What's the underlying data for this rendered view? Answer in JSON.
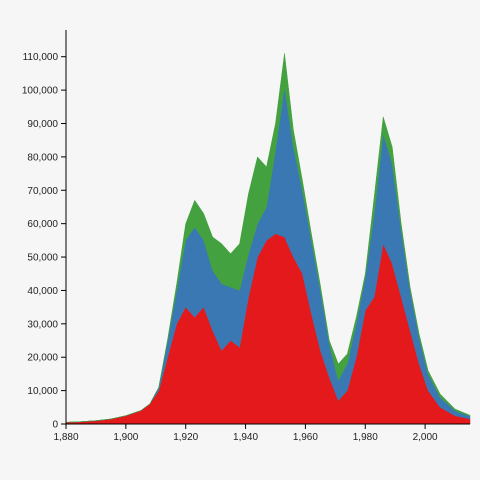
{
  "chart_data": {
    "type": "area",
    "stacked": true,
    "xlim": [
      1880,
      2015
    ],
    "ylim": [
      0,
      118000
    ],
    "x_ticks": [
      1880,
      1900,
      1920,
      1940,
      1960,
      1980,
      2000
    ],
    "x_tick_labels": [
      "1,880",
      "1,900",
      "1,920",
      "1,940",
      "1,960",
      "1,980",
      "2,000"
    ],
    "y_ticks": [
      0,
      10000,
      20000,
      30000,
      40000,
      50000,
      60000,
      70000,
      80000,
      90000,
      100000,
      110000
    ],
    "y_tick_labels": [
      "0",
      "10,000",
      "20,000",
      "30,000",
      "40,000",
      "50,000",
      "60,000",
      "70,000",
      "80,000",
      "90,000",
      "100,000",
      "110,000"
    ],
    "grid": false,
    "legend": "none",
    "x": [
      1880,
      1885,
      1890,
      1895,
      1900,
      1905,
      1908,
      1911,
      1914,
      1917,
      1920,
      1923,
      1926,
      1929,
      1932,
      1935,
      1938,
      1941,
      1944,
      1947,
      1950,
      1953,
      1956,
      1959,
      1962,
      1965,
      1968,
      1971,
      1974,
      1977,
      1980,
      1983,
      1986,
      1989,
      1992,
      1995,
      1998,
      2001,
      2005,
      2010,
      2015
    ],
    "series": [
      {
        "color": "#e3191c",
        "values": [
          500,
          700,
          1000,
          1500,
          2500,
          4000,
          6000,
          10000,
          20000,
          30000,
          35000,
          32000,
          35000,
          28000,
          22000,
          25000,
          23000,
          38000,
          50000,
          55000,
          57000,
          56000,
          50000,
          45000,
          33000,
          22000,
          14000,
          7000,
          10000,
          20000,
          34000,
          38000,
          54000,
          48000,
          38000,
          28000,
          18000,
          10000,
          5000,
          2500,
          1500
        ]
      },
      {
        "color": "#3a78b3",
        "values": [
          0,
          0,
          0,
          0,
          0,
          0,
          0,
          1000,
          5000,
          10000,
          20000,
          27000,
          20000,
          18000,
          20000,
          16000,
          17000,
          13000,
          10000,
          10000,
          25000,
          45000,
          33000,
          25000,
          22000,
          18000,
          10000,
          6000,
          8000,
          10000,
          10000,
          25000,
          33000,
          30000,
          20000,
          12000,
          8000,
          5000,
          3000,
          1500,
          800
        ]
      },
      {
        "color": "#44a140",
        "values": [
          0,
          0,
          0,
          0,
          0,
          0,
          0,
          0,
          500,
          2000,
          5000,
          8000,
          8000,
          10000,
          12000,
          10000,
          14000,
          18000,
          20000,
          12000,
          8000,
          10000,
          5000,
          3000,
          2000,
          1500,
          1000,
          5000,
          3000,
          2000,
          1000,
          5000,
          5000,
          5000,
          2000,
          1000,
          1000,
          1000,
          1000,
          500,
          300
        ]
      }
    ]
  }
}
